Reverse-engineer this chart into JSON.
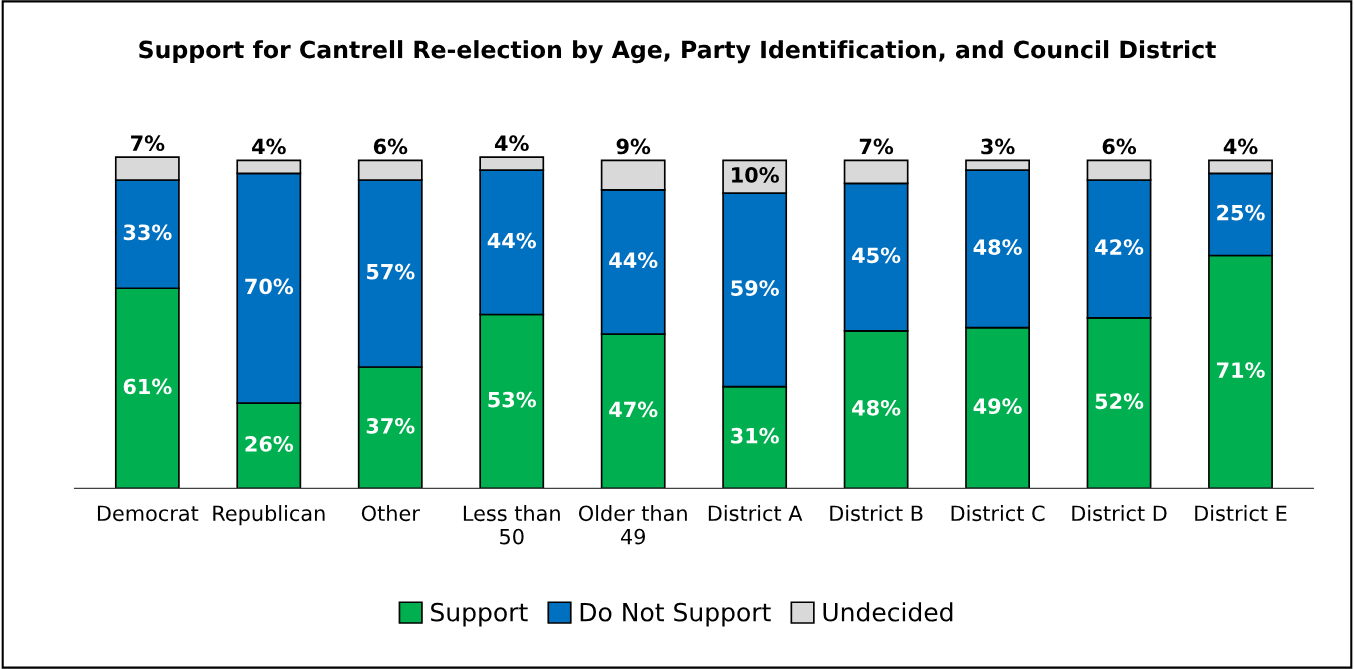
{
  "chart_data": {
    "type": "bar",
    "stacked": true,
    "title": "Support for Cantrell Re-election by Age, Party Identification, and Council District",
    "categories": [
      "Democrat",
      "Republican",
      "Other",
      "Less than 50",
      "Older than 49",
      "District A",
      "District B",
      "District C",
      "District D",
      "District E"
    ],
    "series": [
      {
        "name": "Support",
        "color": "#00b050",
        "values": [
          61,
          26,
          37,
          53,
          47,
          31,
          48,
          49,
          52,
          71
        ],
        "value_labels": [
          "61%",
          "26%",
          "37%",
          "53%",
          "47%",
          "31%",
          "48%",
          "49%",
          "52%",
          "71%"
        ]
      },
      {
        "name": "Do Not Support",
        "color": "#0070c0",
        "values": [
          33,
          70,
          57,
          44,
          44,
          59,
          45,
          48,
          42,
          25
        ],
        "value_labels": [
          "33%",
          "70%",
          "57%",
          "44%",
          "44%",
          "59%",
          "45%",
          "48%",
          "42%",
          "25%"
        ]
      },
      {
        "name": "Undecided",
        "color": "#d9d9d9",
        "values": [
          7,
          4,
          6,
          4,
          9,
          10,
          7,
          3,
          6,
          4
        ],
        "value_labels": [
          "7%",
          "4%",
          "6%",
          "4%",
          "9%",
          "10%",
          "7%",
          "3%",
          "6%",
          "4%"
        ]
      }
    ],
    "legend": "bottom",
    "grid": false
  }
}
